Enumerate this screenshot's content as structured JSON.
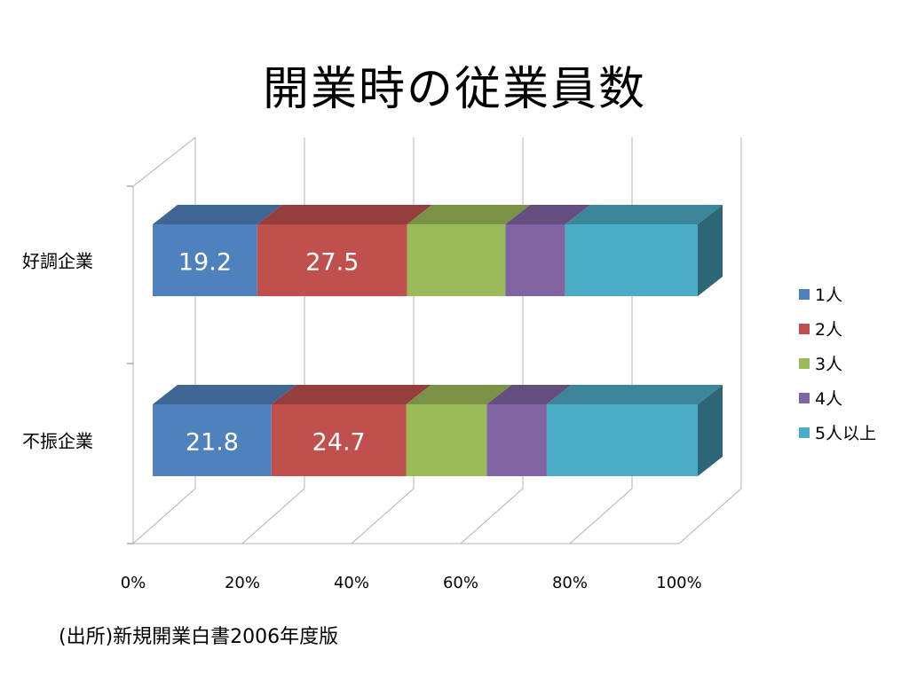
{
  "chart_data": {
    "type": "bar",
    "orientation": "horizontal",
    "stacked": "percent",
    "three_d": true,
    "title": "開業時の従業員数",
    "categories": [
      "好調企業",
      "不振企業"
    ],
    "series": [
      {
        "name": "1人",
        "color": "#4F81BD",
        "values": [
          19.2,
          21.8
        ]
      },
      {
        "name": "2人",
        "color": "#C0504D",
        "values": [
          27.5,
          24.7
        ]
      },
      {
        "name": "3人",
        "color": "#9BBB59",
        "values": [
          18.0,
          14.8
        ]
      },
      {
        "name": "4人",
        "color": "#8064A2",
        "values": [
          11.0,
          11.0
        ]
      },
      {
        "name": "5人以上",
        "color": "#4BACC6",
        "values": [
          24.3,
          27.7
        ]
      }
    ],
    "data_labels": [
      [
        "19.2",
        "27.5"
      ],
      [
        "21.8",
        "24.7"
      ]
    ],
    "x_ticks": [
      "0%",
      "20%",
      "40%",
      "60%",
      "80%",
      "100%"
    ],
    "xlim": [
      0,
      100
    ],
    "grid": true,
    "legend_position": "right"
  },
  "source_note": "(出所)新規開業白書2006年度版"
}
